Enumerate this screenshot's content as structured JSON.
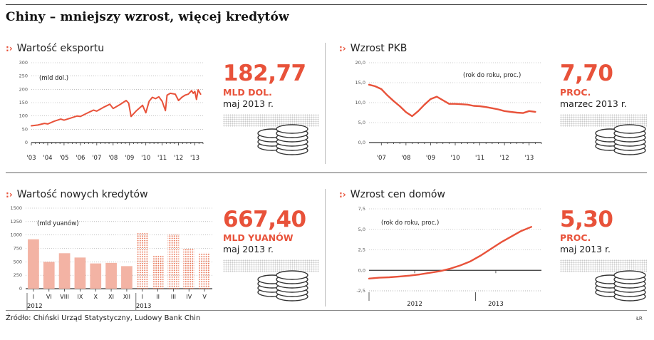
{
  "title": "Chiny – mniejszy wzrost, więcej kredytów",
  "source": "Źródło: Chiński Urząd Statystyczny, Ludowy Bank Chin",
  "credit": "ŁR",
  "colors": {
    "accent": "#e8523a",
    "bar_fill": "#f3b3a4",
    "axis": "#333333",
    "grid": "#9a9a9a"
  },
  "panels": {
    "exports": {
      "title": "Wartość eksportu",
      "value": "182,77",
      "unit": "MLD DOL.",
      "date": "maj 2013 r."
    },
    "gdp": {
      "title": "Wzrost PKB",
      "value": "7,70",
      "unit": "PROC.",
      "date": "marzec 2013 r."
    },
    "credit": {
      "title": "Wartość nowych kredytów",
      "value": "667,40",
      "unit": "MLD YUANÓW",
      "date": "maj 2013 r."
    },
    "housing": {
      "title": "Wzrost cen domów",
      "value": "5,30",
      "unit": "PROC.",
      "date": "maj 2013 r."
    }
  },
  "chart_data": [
    {
      "id": "exports",
      "type": "line",
      "title": "Wartość eksportu",
      "annotation": "(mld dol.)",
      "xlim": [
        2003,
        2013.5
      ],
      "ylim": [
        0,
        300
      ],
      "y_ticks": [
        "0",
        "50",
        "100",
        "150",
        "200",
        "250",
        "300"
      ],
      "x_ticks": [
        "'03",
        "'04",
        "'05",
        "'06",
        "'07",
        "'08",
        "'09",
        "'10",
        "'11",
        "'12",
        "'13"
      ],
      "x": [
        2003.0,
        2003.4,
        2003.8,
        2004.0,
        2004.4,
        2004.8,
        2005.0,
        2005.4,
        2005.8,
        2006.0,
        2006.4,
        2006.8,
        2007.0,
        2007.4,
        2007.8,
        2008.0,
        2008.4,
        2008.8,
        2008.95,
        2009.1,
        2009.4,
        2009.8,
        2010.0,
        2010.2,
        2010.4,
        2010.6,
        2010.8,
        2011.0,
        2011.2,
        2011.3,
        2011.5,
        2011.8,
        2012.0,
        2012.2,
        2012.4,
        2012.6,
        2012.8,
        2012.9,
        2013.0,
        2013.1,
        2013.2,
        2013.35
      ],
      "values": [
        63,
        66,
        72,
        70,
        80,
        88,
        84,
        92,
        100,
        98,
        110,
        122,
        118,
        132,
        144,
        128,
        142,
        158,
        148,
        98,
        118,
        140,
        112,
        155,
        170,
        165,
        172,
        155,
        120,
        178,
        185,
        182,
        158,
        170,
        178,
        182,
        195,
        185,
        192,
        162,
        198,
        182
      ]
    },
    {
      "id": "gdp",
      "type": "line",
      "title": "Wzrost PKB",
      "annotation": "(rok do roku, proc.)",
      "xlim": [
        2006.5,
        2013.5
      ],
      "ylim": [
        0,
        20
      ],
      "y_ticks": [
        "0,0",
        "5,0",
        "10,0",
        "15,0",
        "20,0"
      ],
      "x_ticks": [
        "'07",
        "'08",
        "'09",
        "'10",
        "'11",
        "'12",
        "'13"
      ],
      "x": [
        2006.5,
        2006.75,
        2007.0,
        2007.25,
        2007.5,
        2007.75,
        2008.0,
        2008.25,
        2008.5,
        2008.75,
        2009.0,
        2009.25,
        2009.5,
        2009.75,
        2010.0,
        2010.25,
        2010.5,
        2010.75,
        2011.0,
        2011.25,
        2011.5,
        2011.75,
        2012.0,
        2012.25,
        2012.5,
        2012.75,
        2013.0,
        2013.25
      ],
      "values": [
        14.5,
        14.1,
        13.4,
        11.8,
        10.4,
        9.1,
        7.6,
        6.6,
        7.9,
        9.5,
        10.9,
        11.5,
        10.6,
        9.7,
        9.7,
        9.6,
        9.5,
        9.2,
        9.1,
        8.9,
        8.6,
        8.3,
        7.9,
        7.7,
        7.5,
        7.4,
        7.9,
        7.7
      ]
    },
    {
      "id": "credit",
      "type": "bar",
      "title": "Wartość nowych kredytów",
      "annotation": "(mld yuanów)",
      "ylim": [
        0,
        1500
      ],
      "y_ticks": [
        "0",
        "250",
        "500",
        "750",
        "1000",
        "1250",
        "1500"
      ],
      "categories": [
        "I",
        "VI",
        "VIII",
        "IX",
        "X",
        "XI",
        "XII",
        "I",
        "II",
        "III",
        "IV",
        "V"
      ],
      "year_labels": [
        "2012",
        "2013"
      ],
      "series": [
        {
          "name": "2012",
          "values": [
            920,
            500,
            660,
            580,
            470,
            480,
            420,
            null,
            null,
            null,
            null,
            null
          ]
        },
        {
          "name": "2013",
          "values": [
            null,
            null,
            null,
            null,
            null,
            null,
            null,
            1050,
            620,
            1020,
            750,
            670
          ]
        }
      ]
    },
    {
      "id": "housing",
      "type": "line",
      "title": "Wzrost cen domów",
      "annotation": "(rok do roku, proc.)",
      "xlim": [
        0,
        17
      ],
      "ylim": [
        -2.5,
        7.5
      ],
      "y_ticks": [
        "-2,5",
        "0,0",
        "2,5",
        "5,0",
        "7,5"
      ],
      "x_ticks": [
        "2012",
        "2013"
      ],
      "x": [
        0,
        1,
        2,
        3,
        4,
        5,
        6,
        7,
        8,
        9,
        10,
        11,
        12,
        13,
        14,
        15,
        16
      ],
      "values": [
        -1.0,
        -0.9,
        -0.85,
        -0.75,
        -0.65,
        -0.5,
        -0.3,
        -0.1,
        0.2,
        0.6,
        1.1,
        1.8,
        2.6,
        3.4,
        4.1,
        4.8,
        5.3
      ]
    }
  ]
}
